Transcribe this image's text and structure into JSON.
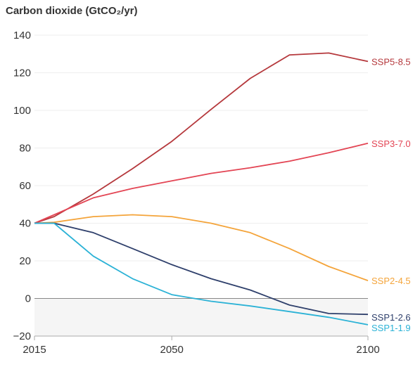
{
  "chart_data": {
    "type": "line",
    "title": "",
    "ylabel": "Carbon dioxide (GtCO₂/yr)",
    "xlabel": "",
    "xlim": [
      2015,
      2100
    ],
    "ylim": [
      -20,
      140
    ],
    "x_ticks": [
      2015,
      2050,
      2100
    ],
    "y_ticks": [
      -20,
      0,
      20,
      40,
      60,
      80,
      100,
      120,
      140
    ],
    "grid": "horizontal",
    "legend": "inline labels at line ends (right)",
    "series": [
      {
        "name": "SSP5-8.5",
        "color": "#b5383c",
        "x": [
          2015,
          2020,
          2030,
          2040,
          2050,
          2060,
          2070,
          2080,
          2090,
          2100
        ],
        "y": [
          40,
          43.5,
          55.5,
          69,
          83.5,
          100.5,
          117,
          129.5,
          130.5,
          126
        ]
      },
      {
        "name": "SSP3-7.0",
        "color": "#e34554",
        "x": [
          2015,
          2020,
          2030,
          2040,
          2050,
          2060,
          2070,
          2080,
          2090,
          2100
        ],
        "y": [
          40,
          44.5,
          53.5,
          58.5,
          62.5,
          66.5,
          69.5,
          73,
          77.5,
          82.5
        ]
      },
      {
        "name": "SSP2-4.5",
        "color": "#f4a43a",
        "x": [
          2015,
          2020,
          2030,
          2040,
          2050,
          2060,
          2070,
          2080,
          2090,
          2100
        ],
        "y": [
          40,
          40.5,
          43.5,
          44.5,
          43.5,
          40,
          35,
          26.5,
          17,
          9.5
        ]
      },
      {
        "name": "SSP1-2.6",
        "color": "#2e3f6b",
        "x": [
          2015,
          2020,
          2030,
          2040,
          2050,
          2060,
          2070,
          2080,
          2090,
          2100
        ],
        "y": [
          40,
          40,
          35,
          26.5,
          18,
          10.5,
          4.5,
          -3.5,
          -8,
          -8.5
        ]
      },
      {
        "name": "SSP1-1.9",
        "color": "#2bb2d6",
        "x": [
          2015,
          2020,
          2030,
          2040,
          2050,
          2060,
          2070,
          2080,
          2090,
          2100
        ],
        "y": [
          40,
          40,
          22.5,
          10.5,
          2,
          -1.5,
          -4,
          -7,
          -10,
          -14
        ]
      }
    ]
  },
  "colors": {
    "axis": "#aaaaaa",
    "gridline": "#eeeeee",
    "zero_line": "#888888",
    "negative_band": "#f5f5f5",
    "text": "#333333"
  }
}
